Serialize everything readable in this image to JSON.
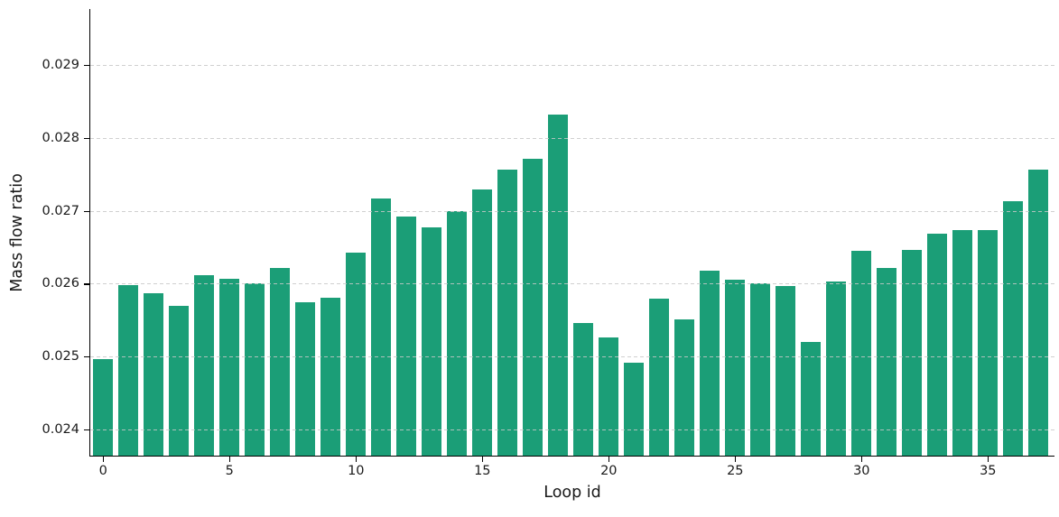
{
  "chart_data": {
    "type": "bar",
    "title": "",
    "xlabel": "Loop id",
    "ylabel": "Mass flow ratio",
    "x": [
      0,
      1,
      2,
      3,
      4,
      5,
      6,
      7,
      8,
      9,
      10,
      11,
      12,
      13,
      14,
      15,
      16,
      17,
      18,
      19,
      20,
      21,
      22,
      23,
      24,
      25,
      26,
      27,
      28,
      29,
      30,
      31,
      32,
      33,
      34,
      35,
      36,
      37
    ],
    "values": [
      0.02497,
      0.02598,
      0.02587,
      0.0257,
      0.02612,
      0.02607,
      0.026,
      0.02621,
      0.02575,
      0.02581,
      0.02643,
      0.02717,
      0.02692,
      0.02677,
      0.027,
      0.02729,
      0.02757,
      0.02771,
      0.02832,
      0.02546,
      0.02526,
      0.02491,
      0.0258,
      0.02551,
      0.02618,
      0.02605,
      0.026,
      0.02597,
      0.0252,
      0.02603,
      0.02645,
      0.02621,
      0.02646,
      0.02669,
      0.02674,
      0.02674,
      0.02713,
      0.02757
    ],
    "xticks": [
      0,
      5,
      10,
      15,
      20,
      25,
      30,
      35
    ],
    "xtick_labels": [
      "0",
      "5",
      "10",
      "15",
      "20",
      "25",
      "30",
      "35"
    ],
    "yticks": [
      0.024,
      0.025,
      0.026,
      0.027,
      0.028,
      0.029
    ],
    "ytick_labels": [
      "0.024",
      "0.025",
      "0.026",
      "0.027",
      "0.028",
      "0.029"
    ],
    "ylim": [
      0.023641,
      0.029767
    ],
    "xlim": [
      -0.58,
      37.65
    ],
    "grid": "horizontal-dashed-on-top",
    "legend": "none",
    "bar_color": "#1b9e77",
    "grid_color": "#c8c8c8",
    "spine_color": "#000000",
    "text_color": "#1a1a1a",
    "background_color": "#ffffff"
  }
}
